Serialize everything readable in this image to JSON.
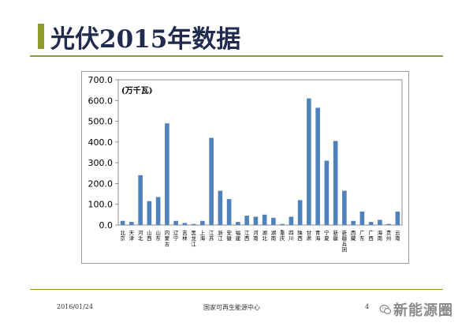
{
  "slide": {
    "title": "光伏2015年数据",
    "footer_date": "2016/01/24",
    "footer_org": "国家可再生能源中心",
    "page_number": "4",
    "watermark_text": "新能源圈",
    "accent_color": "#8f9b2a",
    "title_color": "#1f2b4f"
  },
  "chart_data": {
    "type": "bar",
    "unit_label": "(万千瓦)",
    "ylim": [
      0,
      700
    ],
    "yticks": [
      "0.0",
      "100.0",
      "200.0",
      "300.0",
      "400.0",
      "500.0",
      "600.0",
      "700.0"
    ],
    "bar_color": "#4f81bd",
    "categories": [
      "北京",
      "天津",
      "河北",
      "山西",
      "山东",
      "内蒙古",
      "辽宁",
      "吉林",
      "黑龙江",
      "上海",
      "江苏",
      "浙江",
      "安徽",
      "福建",
      "江西",
      "河南",
      "湖北",
      "湖南",
      "重庆",
      "四川",
      "陕西",
      "甘肃",
      "青海",
      "宁夏",
      "新疆",
      "新疆兵团",
      "西藏",
      "广东",
      "广西",
      "海南",
      "贵州",
      "云南"
    ],
    "values": [
      20,
      15,
      240,
      115,
      135,
      490,
      20,
      10,
      5,
      20,
      420,
      165,
      125,
      15,
      45,
      40,
      50,
      35,
      5,
      40,
      120,
      610,
      565,
      310,
      405,
      165,
      20,
      65,
      15,
      25,
      5,
      65
    ],
    "grid": false
  }
}
